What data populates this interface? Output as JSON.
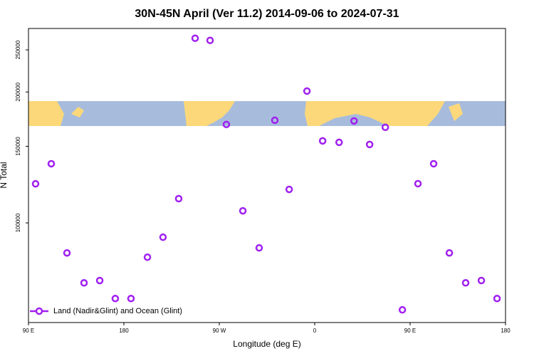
{
  "chart_data": {
    "type": "scatter",
    "title": "30N-45N April (Ver 11.2)   2014-09-06 to 2024-07-31",
    "x_label": "Longitude (deg E)",
    "y_label": "N Total",
    "x": [
      96.7,
      111.5,
      126.3,
      142.4,
      157.2,
      171.9,
      186.7,
      202.2,
      216.9,
      231.7,
      247.2,
      261.3,
      276.7,
      292.2,
      307.6,
      322.4,
      335.9,
      352.7,
      367.5,
      383.0,
      397.1,
      411.8,
      426.6,
      442.7,
      457.4,
      472.2,
      487.0,
      502.4,
      517.2,
      532.0
    ],
    "series": [
      {
        "name": "Land (Nadir&Glint) and Ocean (Glint)",
        "color": "#a020f0",
        "values": [
          123000,
          136800,
          85300,
          72800,
          73700,
          67000,
          67000,
          83400,
          92700,
          113700,
          265900,
          262900,
          168400,
          106600,
          87600,
          172200,
          119400,
          201000,
          154400,
          153200,
          171600,
          151500,
          165900,
          63100,
          123100,
          136800,
          85300,
          72800,
          73700,
          67000
        ]
      }
    ],
    "xlim": [
      90,
      540
    ],
    "xticks": [
      {
        "value": 90,
        "label": "90 E"
      },
      180,
      {
        "value": 270,
        "label": "90 W"
      },
      {
        "value": 360,
        "label": "0"
      },
      {
        "value": 450,
        "label": "90 E"
      },
      {
        "value": 540,
        "label": "180"
      }
    ],
    "ylim": [
      59000,
      280000
    ],
    "ylog": true,
    "yticks": [
      100000,
      150000,
      200000,
      250000
    ],
    "grid": false,
    "legend_position": "bottom-left"
  }
}
